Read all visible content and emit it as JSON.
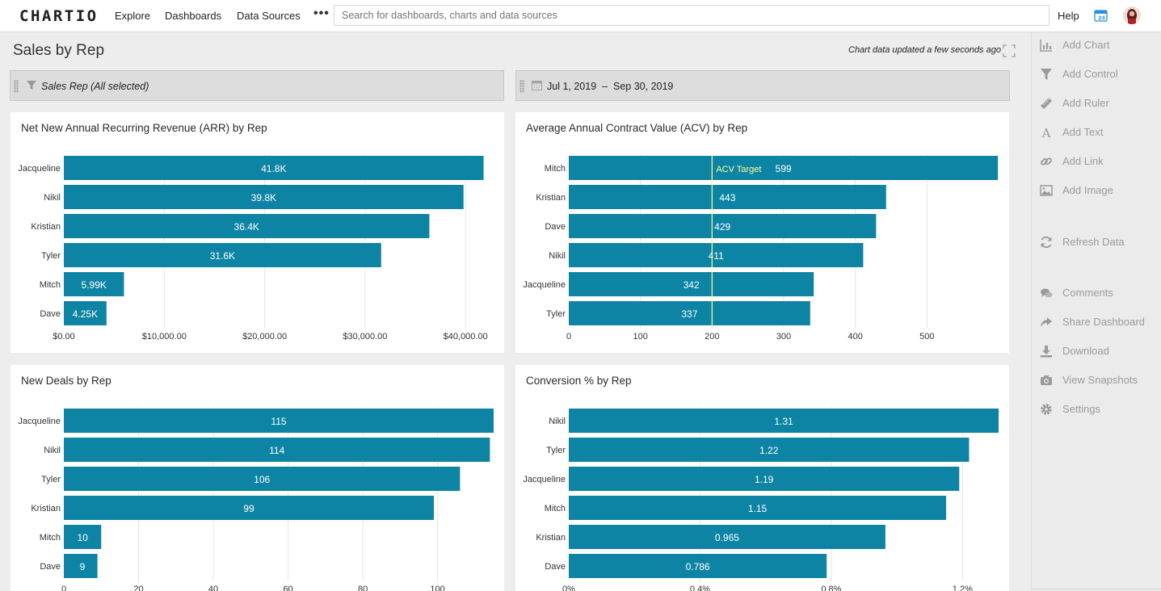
{
  "app": {
    "logo": "CHARTIO",
    "nav": [
      "Explore",
      "Dashboards",
      "Data Sources"
    ],
    "more": "•••",
    "search_placeholder": "Search for dashboards, charts and data sources",
    "help": "Help",
    "calendar_badge": "24"
  },
  "dashboard": {
    "title": "Sales by Rep",
    "updated": "Chart data updated a few seconds ago"
  },
  "filters": {
    "sales_rep": "Sales Rep (All selected)",
    "date_range": "Jul 1, 2019  –  Sep 30, 2019"
  },
  "sidebar": {
    "items": [
      {
        "label": "Add Chart",
        "icon": "bar-chart-icon"
      },
      {
        "label": "Add Control",
        "icon": "funnel-icon"
      },
      {
        "label": "Add Ruler",
        "icon": "ruler-icon"
      },
      {
        "label": "Add Text",
        "icon": "text-icon"
      },
      {
        "label": "Add Link",
        "icon": "link-icon"
      },
      {
        "label": "Add Image",
        "icon": "image-icon"
      },
      {
        "label": "Refresh Data",
        "icon": "refresh-icon"
      },
      {
        "label": "Comments",
        "icon": "comments-icon"
      },
      {
        "label": "Share Dashboard",
        "icon": "share-icon"
      },
      {
        "label": "Download",
        "icon": "download-icon"
      },
      {
        "label": "View Snapshots",
        "icon": "camera-icon"
      },
      {
        "label": "Settings",
        "icon": "gear-icon"
      }
    ]
  },
  "colors": {
    "bar": "#0e84a5",
    "bar_label": "#ffffff",
    "target": "#ffff99",
    "grid": "#e6e6e6"
  },
  "chart_data": [
    {
      "type": "bar",
      "orientation": "horizontal",
      "title": "Net New Annual Recurring Revenue (ARR) by Rep",
      "categories": [
        "Jacqueline",
        "Nikil",
        "Kristian",
        "Tyler",
        "Mitch",
        "Dave"
      ],
      "values": [
        41800,
        39800,
        36400,
        31600,
        5990,
        4250
      ],
      "value_labels": [
        "41.8K",
        "39.8K",
        "36.4K",
        "31.6K",
        "5.99K",
        "4.25K"
      ],
      "xlim": [
        0,
        42800
      ],
      "xticks": [
        0,
        10000,
        20000,
        30000,
        40000
      ],
      "xtick_labels": [
        "$0.00",
        "$10,000.00",
        "$20,000.00",
        "$30,000.00",
        "$40,000.00"
      ]
    },
    {
      "type": "bar",
      "orientation": "horizontal",
      "title": "Average Annual Contract Value (ACV) by Rep",
      "categories": [
        "Mitch",
        "Kristian",
        "Dave",
        "Nikil",
        "Jacqueline",
        "Tyler"
      ],
      "values": [
        599,
        443,
        429,
        411,
        342,
        337
      ],
      "value_labels": [
        "599",
        "443",
        "429",
        "411",
        "342",
        "337"
      ],
      "xlim": [
        0,
        600
      ],
      "xticks": [
        0,
        100,
        200,
        300,
        400,
        500
      ],
      "xtick_labels": [
        "0",
        "100",
        "200",
        "300",
        "400",
        "500"
      ],
      "target": {
        "value": 200,
        "label": "ACV Target"
      }
    },
    {
      "type": "bar",
      "orientation": "horizontal",
      "title": "New Deals by Rep",
      "categories": [
        "Jacqueline",
        "Nikil",
        "Tyler",
        "Kristian",
        "Mitch",
        "Dave"
      ],
      "values": [
        115,
        114,
        106,
        99,
        10,
        9
      ],
      "value_labels": [
        "115",
        "114",
        "106",
        "99",
        "10",
        "9"
      ],
      "xlim": [
        0,
        115
      ],
      "xticks": [
        0,
        20,
        40,
        60,
        80,
        100
      ],
      "xtick_labels": [
        "0",
        "20",
        "40",
        "60",
        "80",
        "100"
      ]
    },
    {
      "type": "bar",
      "orientation": "horizontal",
      "title": "Conversion % by Rep",
      "categories": [
        "Nikil",
        "Tyler",
        "Jacqueline",
        "Mitch",
        "Kristian",
        "Dave"
      ],
      "values": [
        1.31,
        1.22,
        1.19,
        1.15,
        0.965,
        0.786
      ],
      "value_labels": [
        "1.31",
        "1.22",
        "1.19",
        "1.15",
        "0.965",
        "0.786"
      ],
      "xlim": [
        0,
        1.31
      ],
      "xticks": [
        0,
        0.4,
        0.8,
        1.2
      ],
      "xtick_labels": [
        "0%",
        "0.4%",
        "0.8%",
        "1.2%"
      ]
    }
  ]
}
